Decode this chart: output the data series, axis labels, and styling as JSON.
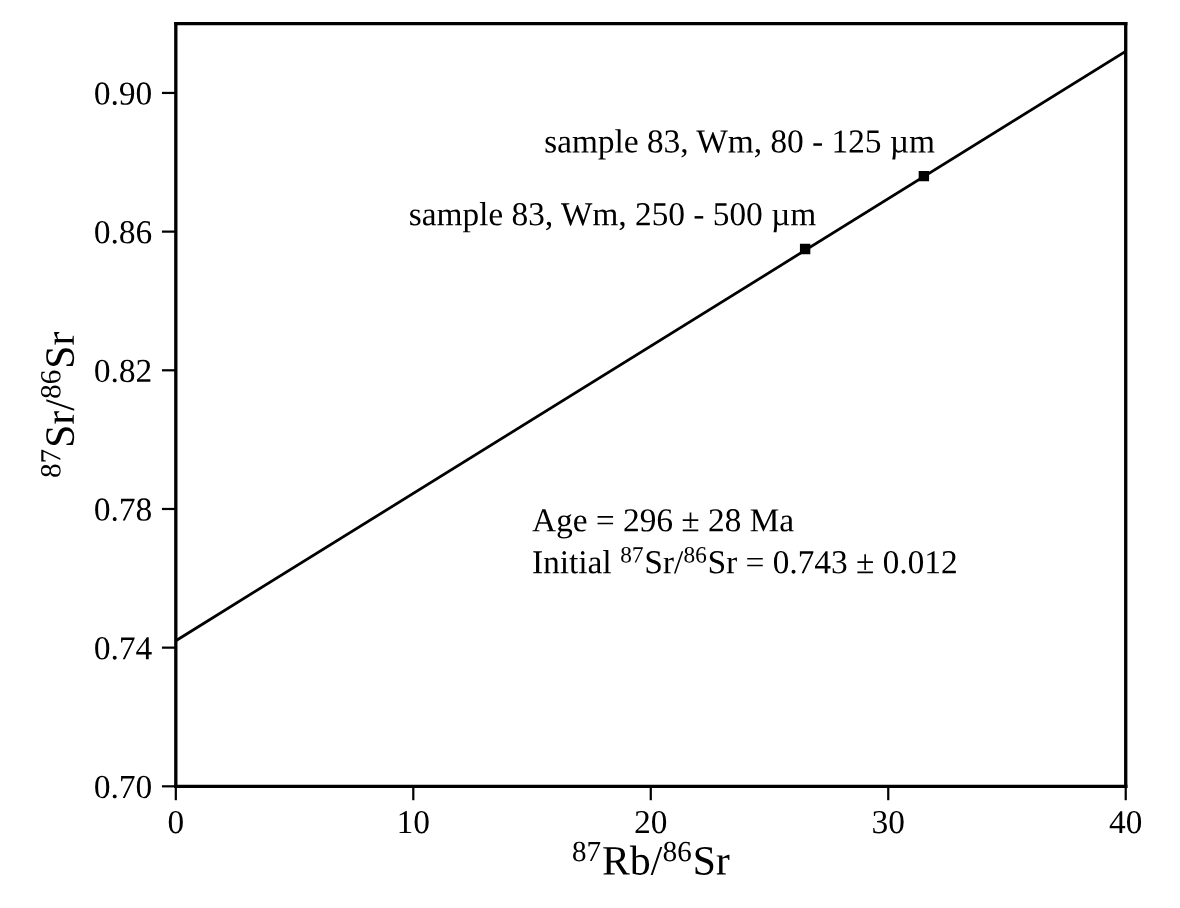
{
  "chart_data": {
    "type": "scatter",
    "xlabel": "$^{87}$Rb/$^{86}$Sr",
    "ylabel": "$^{87}$Sr/$^{86}$Sr",
    "xlim": [
      0,
      40
    ],
    "xticks": [
      0,
      10,
      20,
      30,
      40
    ],
    "ylim": [
      0.7,
      0.92
    ],
    "yticks": [
      {
        "value": 0.7,
        "label": "0.70"
      },
      {
        "value": 0.74,
        "label": "0.74"
      },
      {
        "value": 0.78,
        "label": "0.78"
      },
      {
        "value": 0.82,
        "label": "0.82"
      },
      {
        "value": 0.86,
        "label": "0.86"
      },
      {
        "value": 0.9,
        "label": "0.90"
      }
    ],
    "grid": false,
    "series": [
      {
        "type": "line",
        "color": "#000000",
        "x": [
          0,
          40
        ],
        "values": [
          0.742,
          0.912
        ]
      },
      {
        "color": "#000000",
        "marker": "square",
        "x": [
          26.5,
          31.5
        ],
        "values": [
          0.855,
          0.876
        ]
      }
    ],
    "annotations": [
      {
        "text": "sample 83, Wm, 250 - 500 µm",
        "x": 26.5,
        "y": 0.855
      },
      {
        "text": "sample 83, Wm, 80 - 125 µm",
        "x": 31.5,
        "y": 0.876
      },
      "Age = 296 ± 28 Ma",
      "Initial $^{87}$Sr/$^{86}$Sr = 0.743 ± 0.012"
    ]
  }
}
